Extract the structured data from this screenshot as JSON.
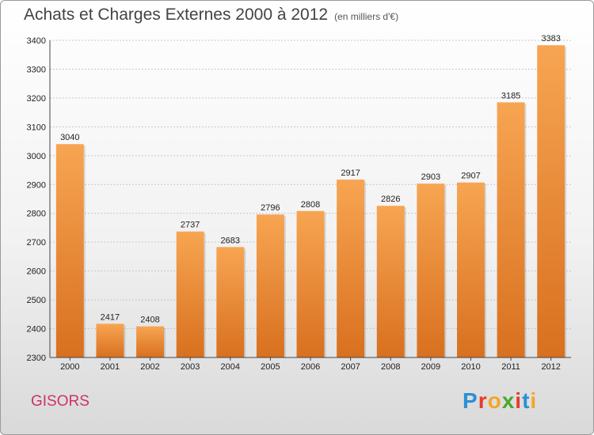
{
  "header": {
    "title": "Achats et Charges Externes 2000 à 2012",
    "unit": "(en milliers d'€)"
  },
  "footer": {
    "city": "GISORS",
    "logo_letters": [
      "P",
      "r",
      "o",
      "x",
      "i",
      "t",
      "i"
    ],
    "logo_colors": [
      "#2b8fd6",
      "#e63b2e",
      "#f5a623",
      "#4aa82a",
      "#e63b2e",
      "#2b8fd6",
      "#f5a623"
    ]
  },
  "chart_data": {
    "type": "bar",
    "title": "Achats et Charges Externes 2000 à 2012",
    "categories": [
      "2000",
      "2001",
      "2002",
      "2003",
      "2004",
      "2005",
      "2006",
      "2007",
      "2008",
      "2009",
      "2010",
      "2011",
      "2012"
    ],
    "values": [
      3040,
      2417,
      2408,
      2737,
      2683,
      2796,
      2808,
      2917,
      2826,
      2903,
      2907,
      3185,
      3383
    ],
    "ylim": [
      2300,
      3400
    ],
    "yticks": [
      2300,
      2400,
      2500,
      2600,
      2700,
      2800,
      2900,
      3000,
      3100,
      3200,
      3300,
      3400
    ],
    "grid": true,
    "bar_color": "#f0923a"
  }
}
